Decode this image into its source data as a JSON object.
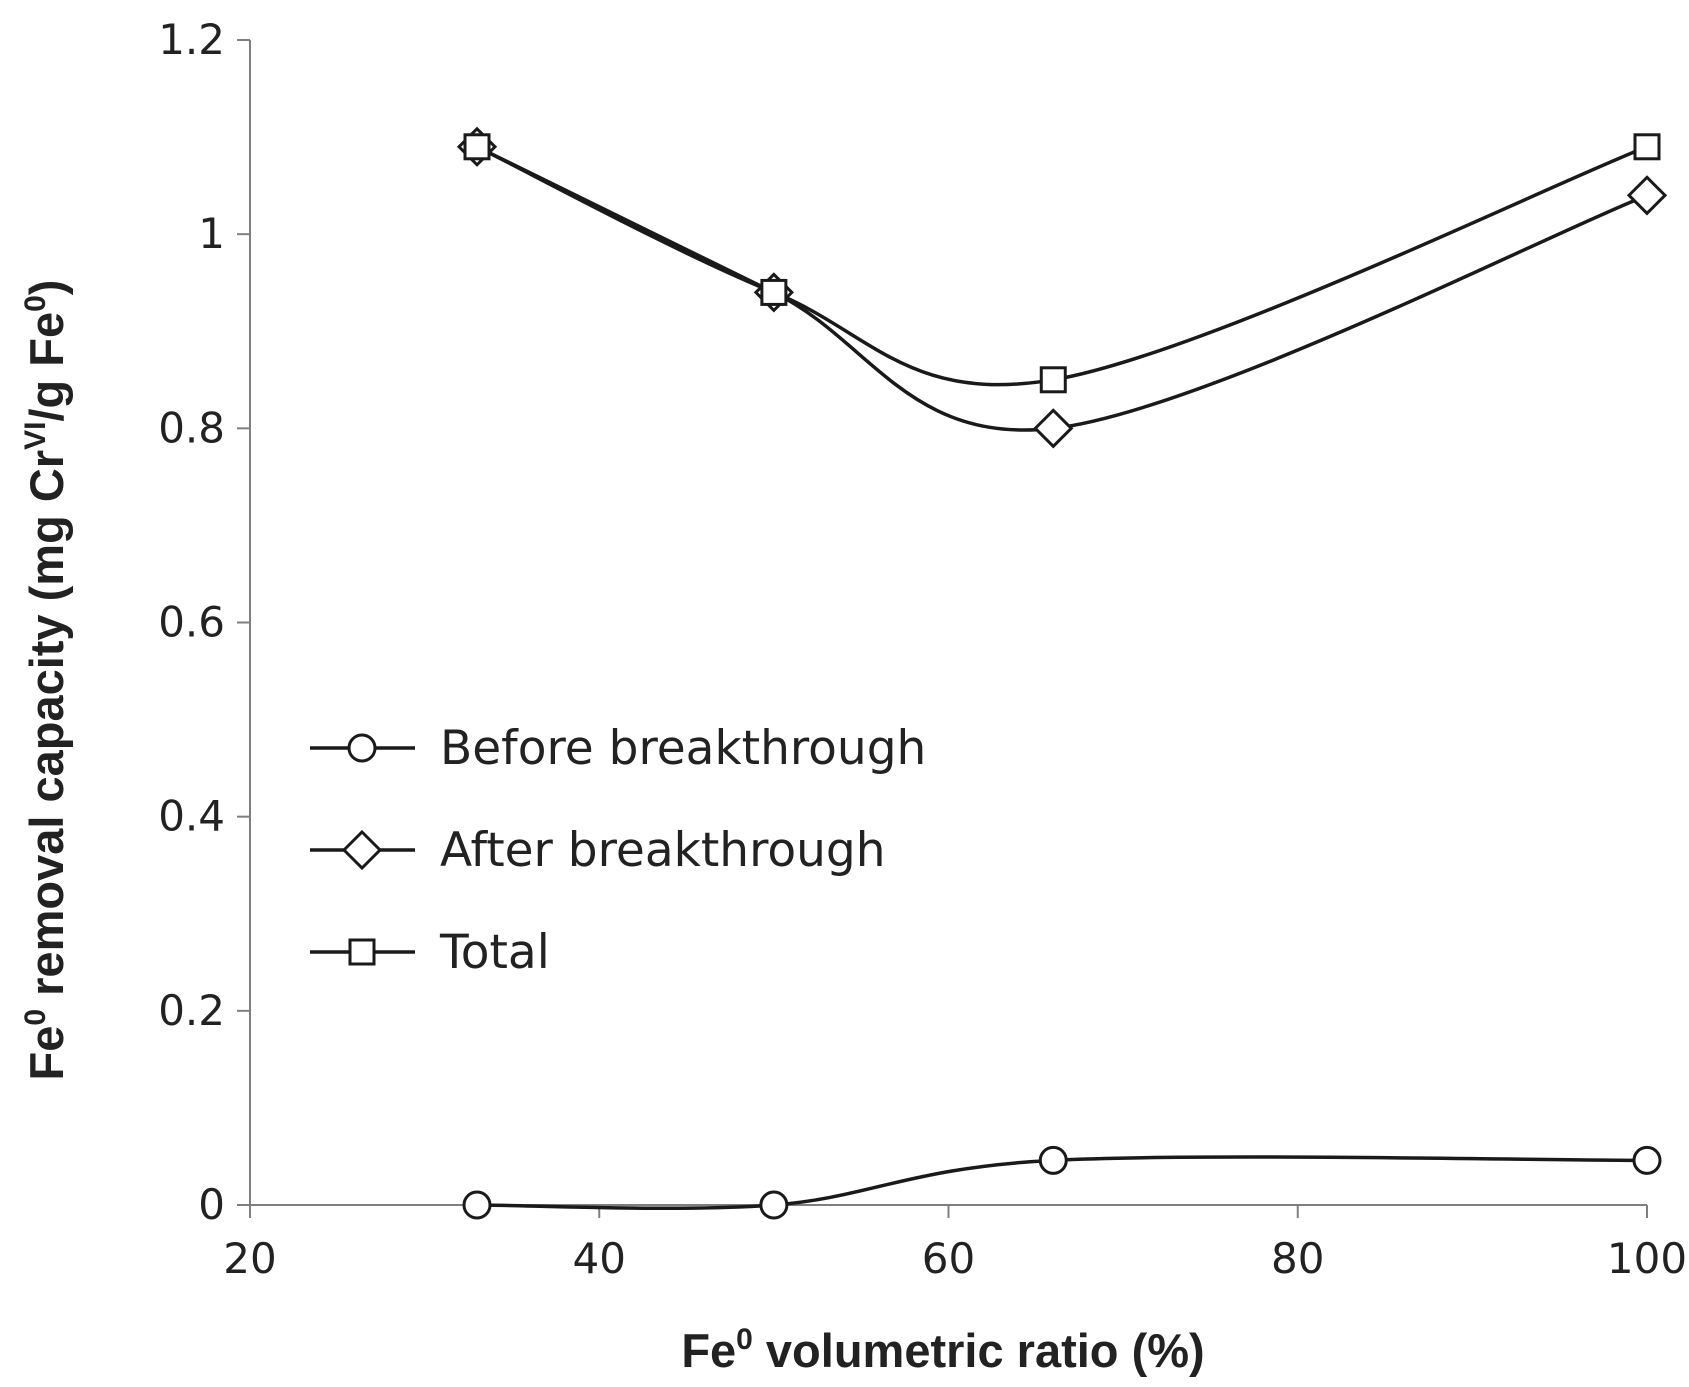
{
  "chart_data": {
    "type": "line",
    "title": "",
    "xlabel": {
      "prefix": "Fe",
      "sup": "0",
      "suffix": " volumetric ratio (%)"
    },
    "ylabel": {
      "prefix": "Fe",
      "sup1": "0",
      "middle": " removal capacity (mg Cr",
      "sup2": "VI",
      "middle2": "/g Fe",
      "sup3": "0",
      "suffix": ")"
    },
    "xlim": [
      20,
      100
    ],
    "ylim": [
      0,
      1.2
    ],
    "x_ticks": [
      20,
      40,
      60,
      80,
      100
    ],
    "x_tick_labels": [
      "20",
      "40",
      "60",
      "80",
      "100"
    ],
    "y_ticks": [
      0,
      0.2,
      0.4,
      0.6,
      0.8,
      1.0,
      1.2
    ],
    "y_tick_labels": [
      "0",
      "0.2",
      "0.4",
      "0.6",
      "0.8",
      "1",
      "1.2"
    ],
    "grid": false,
    "smooth": true,
    "x": [
      33,
      50,
      66,
      100
    ],
    "series": [
      {
        "name": "Before breakthrough",
        "marker": "circle",
        "values": [
          0.0,
          0.0,
          0.046,
          0.046
        ]
      },
      {
        "name": "After breakthrough",
        "marker": "diamond",
        "values": [
          1.09,
          0.94,
          0.8,
          1.04
        ]
      },
      {
        "name": "Total",
        "marker": "square",
        "values": [
          1.09,
          0.94,
          0.85,
          1.09
        ]
      }
    ],
    "legend_position": "center-left",
    "line_color": "#1a1a1a"
  }
}
